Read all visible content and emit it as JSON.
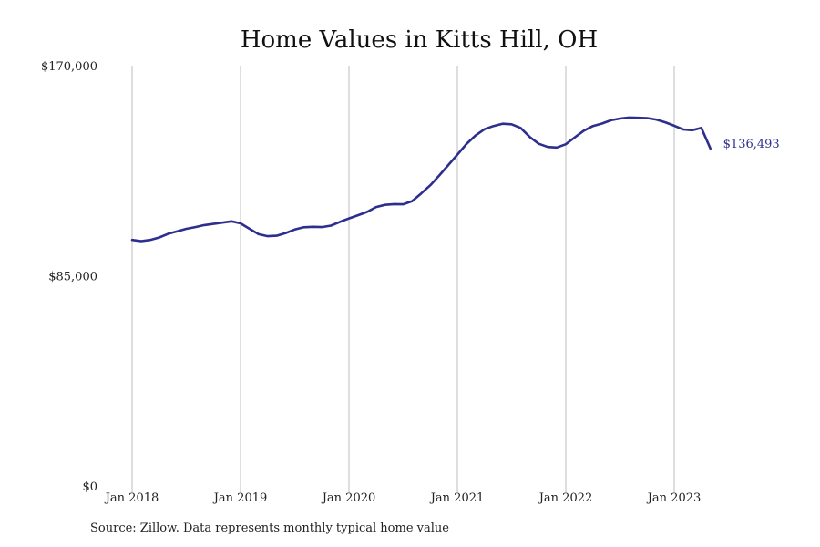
{
  "chart_data": {
    "type": "line",
    "title": "Home Values in Kitts Hill, OH",
    "xlabel": "",
    "ylabel": "",
    "x_tick_labels": [
      "Jan 2018",
      "Jan 2019",
      "Jan 2020",
      "Jan 2021",
      "Jan 2022",
      "Jan 2023"
    ],
    "y_tick_labels": [
      "$170,000",
      "$85,000",
      "$0"
    ],
    "y_ticks": [
      170000,
      85000,
      0
    ],
    "ylim": [
      0,
      170000
    ],
    "x_start": "2018-01",
    "grid": "vertical lines at each January",
    "legend": "none",
    "line_color": "#2e2e8f",
    "end_label": "$136,493",
    "series": [
      {
        "x": [
          "2018-01",
          "2018-02",
          "2018-03",
          "2018-04",
          "2018-05",
          "2018-06",
          "2018-07",
          "2018-08",
          "2018-09",
          "2018-10",
          "2018-11",
          "2018-12",
          "2019-01",
          "2019-02",
          "2019-03",
          "2019-04",
          "2019-05",
          "2019-06",
          "2019-07",
          "2019-08",
          "2019-09",
          "2019-10",
          "2019-11",
          "2019-12",
          "2020-01",
          "2020-02",
          "2020-03",
          "2020-04",
          "2020-05",
          "2020-06",
          "2020-07",
          "2020-08",
          "2020-09",
          "2020-10",
          "2020-11",
          "2020-12",
          "2021-01",
          "2021-02",
          "2021-03",
          "2021-04",
          "2021-05",
          "2021-06",
          "2021-07",
          "2021-08",
          "2021-09",
          "2021-10",
          "2021-11",
          "2021-12",
          "2022-01",
          "2022-02",
          "2022-03",
          "2022-04",
          "2022-05",
          "2022-06",
          "2022-07",
          "2022-08",
          "2022-09",
          "2022-10",
          "2022-11",
          "2022-12",
          "2023-01",
          "2023-02",
          "2023-03",
          "2023-04",
          "2023-05"
        ],
        "values": [
          99500,
          99000,
          99500,
          100500,
          102000,
          103000,
          104000,
          104700,
          105500,
          106000,
          106500,
          107000,
          106200,
          104000,
          101800,
          101000,
          101200,
          102300,
          103700,
          104600,
          104800,
          104700,
          105300,
          106800,
          108200,
          109500,
          110800,
          112800,
          113700,
          114000,
          113900,
          115200,
          118300,
          121600,
          125600,
          129800,
          134000,
          138300,
          141700,
          144300,
          145600,
          146500,
          146300,
          144800,
          141200,
          138400,
          137100,
          136900,
          138200,
          141000,
          143700,
          145600,
          146600,
          147900,
          148600,
          149000,
          148900,
          148800,
          148200,
          147100,
          145700,
          144200,
          143900,
          144800,
          136493
        ]
      }
    ]
  },
  "source_note": "Source: Zillow. Data represents monthly typical home value"
}
